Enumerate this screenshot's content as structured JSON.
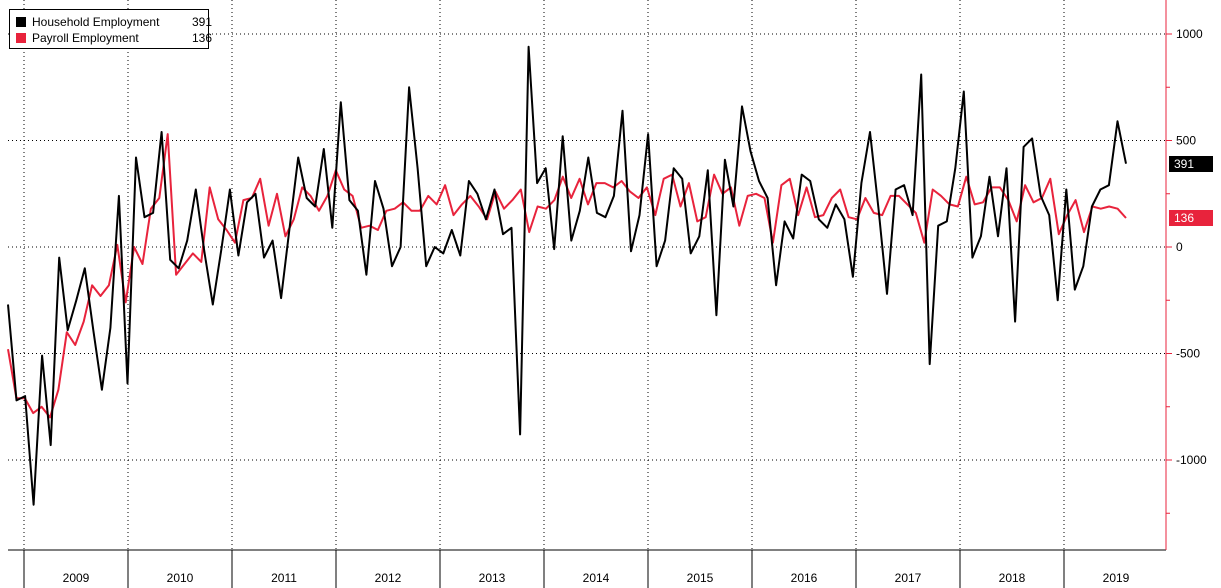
{
  "colors": {
    "household": "#000000",
    "payroll": "#e8233c",
    "axis": "#e8233c",
    "grid": "#000000"
  },
  "legend": {
    "items": [
      {
        "name": "Household Employment",
        "value": "391"
      },
      {
        "name": "Payroll Employment",
        "value": "136"
      }
    ]
  },
  "badges": {
    "household": "391",
    "payroll": "136"
  },
  "chart_data": {
    "type": "line",
    "ylim": [
      -1400,
      1150
    ],
    "y_ticks": [
      1000,
      500,
      0,
      -500,
      -1000
    ],
    "y_tick_labels": [
      "1000",
      "500",
      "0",
      "-500",
      "-1000"
    ],
    "x_start": "2009-01",
    "x_end": "2019-10",
    "year_labels": [
      "2009",
      "2010",
      "2011",
      "2012",
      "2013",
      "2014",
      "2015",
      "2016",
      "2017",
      "2018",
      "2019"
    ],
    "grid": true,
    "legend_position": "top-left",
    "series": [
      {
        "name": "Household Employment",
        "values": [
          -270,
          -720,
          -700,
          -1210,
          -510,
          -930,
          -50,
          -390,
          -250,
          -100,
          -390,
          -670,
          -380,
          240,
          -640,
          420,
          140,
          160,
          540,
          -60,
          -100,
          30,
          270,
          -20,
          -270,
          -10,
          270,
          -40,
          210,
          250,
          -50,
          30,
          -240,
          90,
          420,
          230,
          190,
          460,
          90,
          680,
          220,
          170,
          -130,
          310,
          180,
          -90,
          0,
          750,
          370,
          -90,
          0,
          -30,
          80,
          -40,
          310,
          250,
          130,
          270,
          60,
          90,
          -880,
          940,
          300,
          370,
          -10,
          520,
          30,
          170,
          420,
          160,
          140,
          240,
          640,
          -20,
          150,
          530,
          -90,
          30,
          370,
          320,
          -30,
          50,
          360,
          -320,
          410,
          190,
          660,
          450,
          310,
          230,
          -180,
          120,
          40,
          340,
          310,
          130,
          90,
          200,
          130,
          -140,
          300,
          540,
          180,
          -220,
          270,
          290,
          150,
          810,
          -550,
          100,
          120,
          370,
          730,
          -50,
          50,
          330,
          50,
          370,
          -350,
          470,
          510,
          240,
          150,
          -250,
          270,
          -200,
          -90,
          190,
          270,
          290,
          590,
          391
        ],
        "color": "#000000"
      },
      {
        "name": "Payroll Employment",
        "values": [
          -480,
          -710,
          -710,
          -780,
          -750,
          -800,
          -670,
          -400,
          -460,
          -350,
          -180,
          -230,
          -180,
          10,
          -260,
          0,
          -80,
          180,
          230,
          530,
          -130,
          -80,
          -30,
          -70,
          280,
          130,
          80,
          20,
          220,
          230,
          320,
          100,
          250,
          50,
          130,
          280,
          240,
          170,
          240,
          360,
          270,
          240,
          90,
          100,
          80,
          170,
          180,
          210,
          170,
          170,
          240,
          200,
          290,
          150,
          200,
          240,
          190,
          130,
          260,
          180,
          220,
          270,
          70,
          190,
          180,
          220,
          330,
          230,
          320,
          200,
          300,
          300,
          280,
          310,
          260,
          230,
          280,
          150,
          320,
          340,
          190,
          300,
          120,
          140,
          340,
          250,
          280,
          100,
          240,
          250,
          230,
          20,
          290,
          320,
          150,
          280,
          140,
          150,
          230,
          270,
          140,
          130,
          230,
          160,
          150,
          240,
          240,
          200,
          160,
          20,
          270,
          240,
          200,
          190,
          330,
          200,
          210,
          280,
          280,
          220,
          120,
          290,
          210,
          230,
          320,
          60,
          150,
          220,
          70,
          190,
          180,
          190,
          180,
          136
        ],
        "color": "#e8233c"
      }
    ]
  }
}
